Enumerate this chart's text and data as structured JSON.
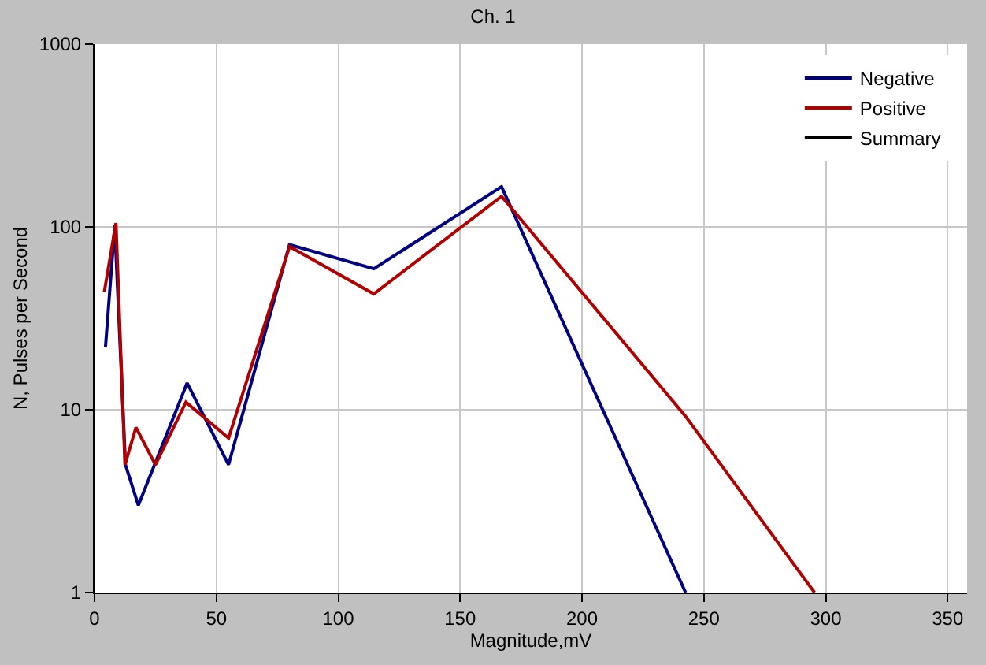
{
  "chart_data": {
    "type": "line",
    "title": "Ch. 1",
    "xlabel": "Magnitude,mV",
    "ylabel": "N, Pulses per Second",
    "log": "y",
    "xlim": [
      0,
      358
    ],
    "xticks": [
      0,
      50,
      100,
      150,
      200,
      250,
      300,
      350
    ],
    "ylim": [
      1,
      1000
    ],
    "yticks": [
      1,
      10,
      100,
      1000
    ],
    "grid": true,
    "legend": "top right",
    "marker": "none",
    "line_style": "solid",
    "series": [
      {
        "name": "Negative",
        "color": "#000080",
        "x": [
          4.5,
          8.3,
          12.7,
          18,
          38,
          55,
          80,
          114.6,
          167,
          242.5
        ],
        "values": [
          22,
          102,
          5,
          3,
          14,
          5,
          80,
          59,
          166,
          1
        ]
      },
      {
        "name": "Positive",
        "color": "#b00000",
        "x": [
          4,
          8.8,
          12.5,
          17,
          25,
          37.5,
          55,
          80,
          114.6,
          167,
          242.5,
          295.4
        ],
        "values": [
          44,
          105,
          5,
          8,
          5,
          11,
          7,
          78,
          43,
          147,
          9.2,
          1
        ]
      },
      {
        "name": "Summary",
        "color": "#000000"
      }
    ]
  }
}
